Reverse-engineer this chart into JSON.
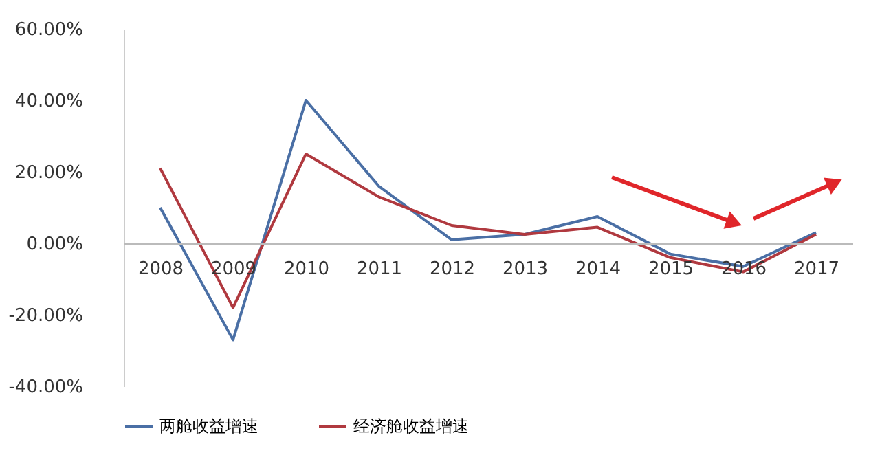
{
  "chart_data": {
    "type": "line",
    "categories": [
      "2008",
      "2009",
      "2010",
      "2011",
      "2012",
      "2013",
      "2014",
      "2015",
      "2016",
      "2017"
    ],
    "series": [
      {
        "name": "两舱收益增速",
        "color": "#4a6fa5",
        "values": [
          10,
          -27,
          40,
          16,
          1,
          2.5,
          7.5,
          -3,
          -6.5,
          3
        ]
      },
      {
        "name": "经济舱收益增速",
        "color": "#b0393f",
        "values": [
          21,
          -18,
          25,
          13,
          5,
          2.5,
          4.5,
          -4,
          -8,
          2.5
        ]
      }
    ],
    "ylim": [
      -40,
      60
    ],
    "yticks": [
      {
        "value": -40,
        "label": "-40.00%"
      },
      {
        "value": -20,
        "label": "-20.00%"
      },
      {
        "value": 0,
        "label": "0.00%"
      },
      {
        "value": 20,
        "label": "20.00%"
      },
      {
        "value": 40,
        "label": "40.00%"
      },
      {
        "value": 60,
        "label": "60.00%"
      }
    ],
    "grid": false,
    "legend": "bottom",
    "marker": "none",
    "line_style": "solid"
  }
}
